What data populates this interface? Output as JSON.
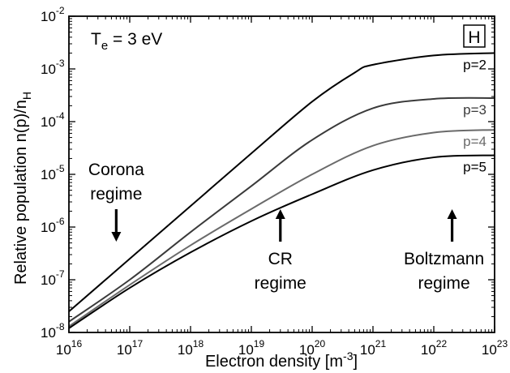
{
  "chart_data": {
    "type": "line",
    "xlabel": "Electron density [m",
    "xlabel_sup": "-3",
    "xlabel_end": "]",
    "ylabel": "Relative population n(p)/n",
    "ylabel_sub": "H",
    "x_scale": "log",
    "y_scale": "log",
    "xlim": [
      1e+16,
      1e+23
    ],
    "ylim": [
      1e-08,
      0.01
    ],
    "x_ticks": [
      {
        "base": "10",
        "exp": "16"
      },
      {
        "base": "10",
        "exp": "17"
      },
      {
        "base": "10",
        "exp": "18"
      },
      {
        "base": "10",
        "exp": "19"
      },
      {
        "base": "10",
        "exp": "20"
      },
      {
        "base": "10",
        "exp": "21"
      },
      {
        "base": "10",
        "exp": "22"
      },
      {
        "base": "10",
        "exp": "23"
      }
    ],
    "y_ticks": [
      {
        "base": "10",
        "exp": "-8"
      },
      {
        "base": "10",
        "exp": "-7"
      },
      {
        "base": "10",
        "exp": "-6"
      },
      {
        "base": "10",
        "exp": "-5"
      },
      {
        "base": "10",
        "exp": "-4"
      },
      {
        "base": "10",
        "exp": "-3"
      },
      {
        "base": "10",
        "exp": "-2"
      }
    ],
    "temperature": {
      "main": "T",
      "sub": "e",
      "rest": " = 3 eV"
    },
    "element_box": "H",
    "series": [
      {
        "name": "p=2",
        "color": "#000000",
        "x": [
          1e+16,
          1e+17,
          1e+18,
          1e+19,
          1e+20,
          5e+20,
          1e+21,
          1e+22,
          1e+23
        ],
        "y": [
          2.5e-08,
          2.5e-07,
          2.5e-06,
          2.5e-05,
          0.00024,
          0.00085,
          0.0012,
          0.0018,
          0.002
        ]
      },
      {
        "name": "p=3",
        "color": "#3a3a3a",
        "x": [
          1e+16,
          1e+17,
          1e+18,
          1e+19,
          1e+20,
          1e+21,
          1e+22,
          1e+23
        ],
        "y": [
          1.6e-08,
          1e-07,
          8e-07,
          6e-06,
          4.5e-05,
          0.00018,
          0.00027,
          0.00028
        ]
      },
      {
        "name": "p=4",
        "color": "#6a6a6a",
        "x": [
          1e+16,
          1e+17,
          1e+18,
          1e+19,
          1e+20,
          1e+21,
          1e+22,
          1e+23
        ],
        "y": [
          1.3e-08,
          8e-08,
          4.5e-07,
          2.2e-06,
          1e-05,
          3.5e-05,
          6.2e-05,
          7e-05
        ]
      },
      {
        "name": "p=5",
        "color": "#000000",
        "x": [
          1e+16,
          1e+17,
          1e+18,
          1e+19,
          1e+20,
          1e+21,
          1e+22,
          1e+23
        ],
        "y": [
          1.2e-08,
          7e-08,
          3.3e-07,
          1.3e-06,
          4.2e-06,
          1.2e-05,
          2.1e-05,
          2.3e-05
        ]
      }
    ],
    "annotations": [
      {
        "lines": [
          "Corona",
          "regime"
        ],
        "arrow": "down",
        "x": 6e+16
      },
      {
        "lines": [
          "CR",
          "regime"
        ],
        "arrow": "up",
        "x": 3e+19
      },
      {
        "lines": [
          "Boltzmann",
          "regime"
        ],
        "arrow": "up",
        "x": 2e+22
      }
    ],
    "grid": false,
    "legend": "inline labels at right"
  }
}
